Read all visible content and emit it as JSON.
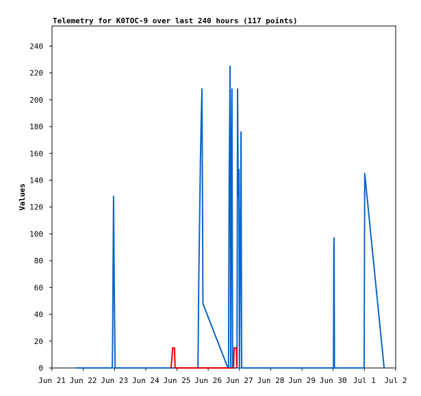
{
  "chart_data": {
    "type": "line",
    "title": "Telemetry for K0TOC-9 over last 240 hours (117 points)",
    "y_label": "Values",
    "xlim": [
      0,
      11
    ],
    "xticks": [
      {
        "value": 0,
        "label": "Jun 21"
      },
      {
        "value": 1,
        "label": "Jun 22"
      },
      {
        "value": 2,
        "label": "Jun 23"
      },
      {
        "value": 3,
        "label": "Jun 24"
      },
      {
        "value": 4,
        "label": "Jun 25"
      },
      {
        "value": 5,
        "label": "Jun 26"
      },
      {
        "value": 6,
        "label": "Jun 27"
      },
      {
        "value": 7,
        "label": "Jun 28"
      },
      {
        "value": 8,
        "label": "Jun 29"
      },
      {
        "value": 9,
        "label": "Jun 30"
      },
      {
        "value": 10,
        "label": "Jul 1"
      },
      {
        "value": 11,
        "label": "Jul 2"
      }
    ],
    "ylim": [
      0,
      255
    ],
    "yticks": [
      0,
      20,
      40,
      60,
      80,
      100,
      120,
      140,
      160,
      180,
      200,
      220,
      240
    ],
    "grid": false,
    "series": [
      {
        "color": "#0b63c9",
        "x": [
          0.745,
          1.93,
          1.94,
          1.95,
          1.97,
          1.99,
          2.02,
          4.67,
          4.68,
          4.69,
          4.71,
          4.73,
          4.75,
          4.78,
          4.8,
          4.82,
          4.83,
          5.63,
          5.65,
          5.67,
          5.7,
          5.72,
          5.74,
          5.76,
          5.78,
          5.92,
          5.93,
          5.94,
          5.96,
          5.98,
          6.0,
          6.05,
          6.07,
          9.01,
          9.02,
          9.03,
          9.04,
          9.99,
          10.01,
          10.63
        ],
        "values": [
          0,
          0,
          20,
          60,
          128,
          65,
          0,
          0,
          18,
          50,
          88,
          120,
          155,
          190,
          208,
          110,
          48,
          0,
          0,
          135,
          225,
          0,
          155,
          208,
          0,
          0,
          100,
          208,
          128,
          148,
          0,
          176,
          0,
          0,
          90,
          97,
          0,
          0,
          145,
          0
        ]
      },
      {
        "color": "#e00000",
        "x": [
          3.81,
          3.84,
          3.86,
          3.92,
          3.94,
          5.81,
          5.83,
          5.9,
          5.92
        ],
        "values": [
          0,
          8,
          15,
          15,
          0,
          0,
          15,
          15,
          0
        ]
      }
    ]
  }
}
